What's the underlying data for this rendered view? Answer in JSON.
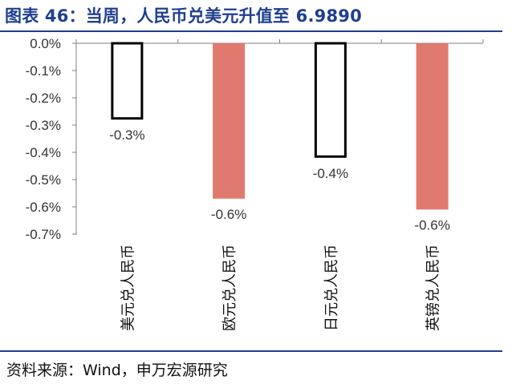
{
  "title": "图表 46：当周，人民币兑美元升值至 6.9890",
  "source": "资料来源：Wind，申万宏源研究",
  "colors": {
    "title": "#1f3f8f",
    "outline_bar_fill": "#ffffff",
    "outline_bar_stroke": "#000000",
    "filled_bar": "#e07a6e",
    "axis": "#7f7f7f",
    "text": "#333333"
  },
  "chart_data": {
    "type": "bar",
    "categories": [
      "美元兑人民币",
      "欧元兑人民币",
      "日元兑人民币",
      "英镑兑人民币"
    ],
    "values": [
      -0.28,
      -0.57,
      -0.42,
      -0.61
    ],
    "data_labels": [
      "-0.3%",
      "-0.6%",
      "-0.4%",
      "-0.6%"
    ],
    "bar_styles": [
      "outline",
      "filled",
      "outline",
      "filled"
    ],
    "yticks": [
      "0.0%",
      "-0.1%",
      "-0.2%",
      "-0.3%",
      "-0.4%",
      "-0.5%",
      "-0.6%",
      "-0.7%"
    ],
    "ylim": [
      -0.7,
      0
    ],
    "grid": false,
    "legend": "none"
  }
}
